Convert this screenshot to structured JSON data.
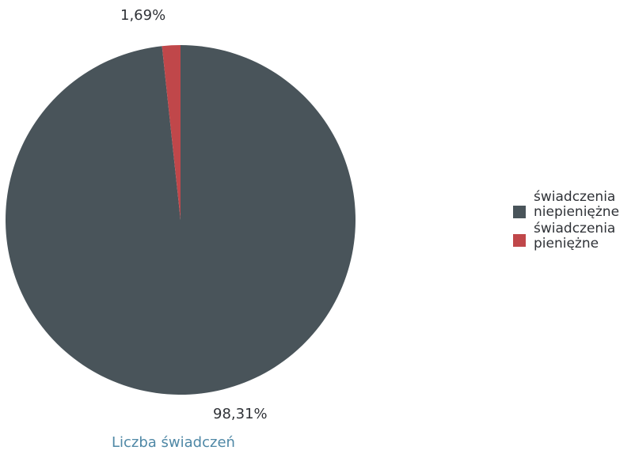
{
  "chart_data": {
    "type": "pie",
    "title": "Liczba świadczeń",
    "slices": [
      {
        "label": "świadczenia niepieniężne",
        "value": 98.31,
        "display": "98,31%",
        "color": "#49545a"
      },
      {
        "label": "świadczenia pieniężne",
        "value": 1.69,
        "display": "1,69%",
        "color": "#c0474a"
      }
    ],
    "legend": {
      "placement": "right",
      "entries": [
        "świadczenia niepieniężne",
        "świadczenia pieniężne"
      ]
    }
  }
}
